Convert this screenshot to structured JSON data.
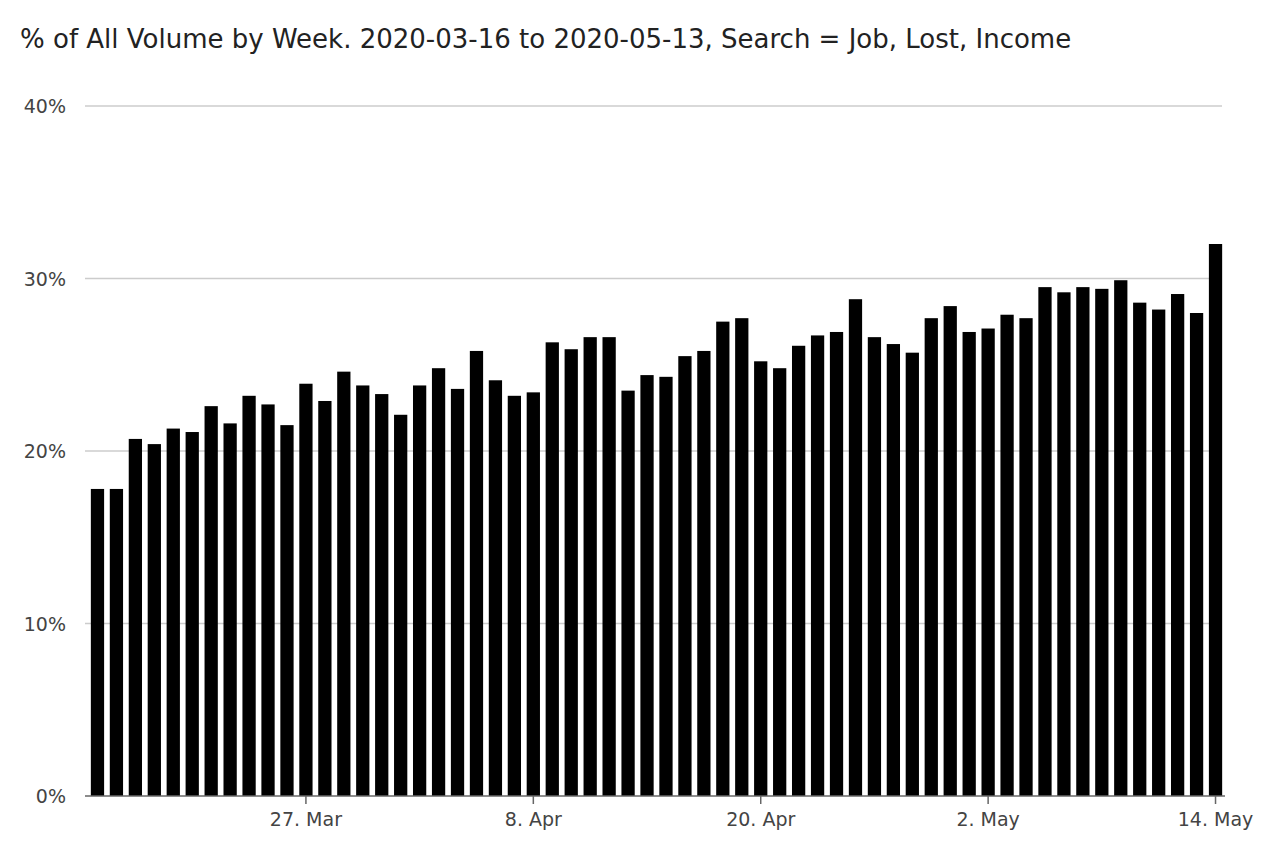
{
  "chart_data": {
    "type": "bar",
    "title": "% of All Volume by Week. 2020-03-16 to 2020-05-13, Search = Job, Lost, Income",
    "categories": [
      null,
      null,
      null,
      null,
      null,
      null,
      null,
      null,
      null,
      null,
      null,
      "27. Mar",
      null,
      null,
      null,
      null,
      null,
      null,
      null,
      null,
      null,
      null,
      null,
      "8. Apr",
      null,
      null,
      null,
      null,
      null,
      null,
      null,
      null,
      null,
      null,
      null,
      "20. Apr",
      null,
      null,
      null,
      null,
      null,
      null,
      null,
      null,
      null,
      null,
      null,
      "2. May",
      null,
      null,
      null,
      null,
      null,
      null,
      null,
      null,
      null,
      null,
      null,
      "14. May"
    ],
    "values": [
      17.8,
      17.8,
      20.7,
      20.4,
      21.3,
      21.1,
      22.6,
      21.6,
      23.2,
      22.7,
      21.5,
      23.9,
      22.9,
      24.6,
      23.8,
      23.3,
      22.1,
      23.8,
      24.8,
      23.6,
      25.8,
      24.1,
      23.2,
      23.4,
      26.3,
      25.9,
      26.6,
      26.6,
      23.5,
      24.4,
      24.3,
      25.5,
      25.8,
      27.5,
      27.7,
      25.2,
      24.8,
      26.1,
      26.7,
      26.9,
      28.8,
      26.6,
      26.2,
      25.7,
      27.7,
      28.4,
      26.9,
      27.1,
      27.9,
      27.7,
      29.5,
      29.2,
      29.5,
      29.4,
      29.9,
      28.6,
      28.2,
      29.1,
      28.0,
      32.0
    ],
    "color": "#000000",
    "ylim": [
      0,
      40
    ],
    "yticks": [
      {
        "value": 0,
        "label": "0%"
      },
      {
        "value": 10,
        "label": "10%"
      },
      {
        "value": 20,
        "label": "20%"
      },
      {
        "value": 30,
        "label": "30%"
      },
      {
        "value": 40,
        "label": "40%"
      }
    ],
    "grid": true
  }
}
